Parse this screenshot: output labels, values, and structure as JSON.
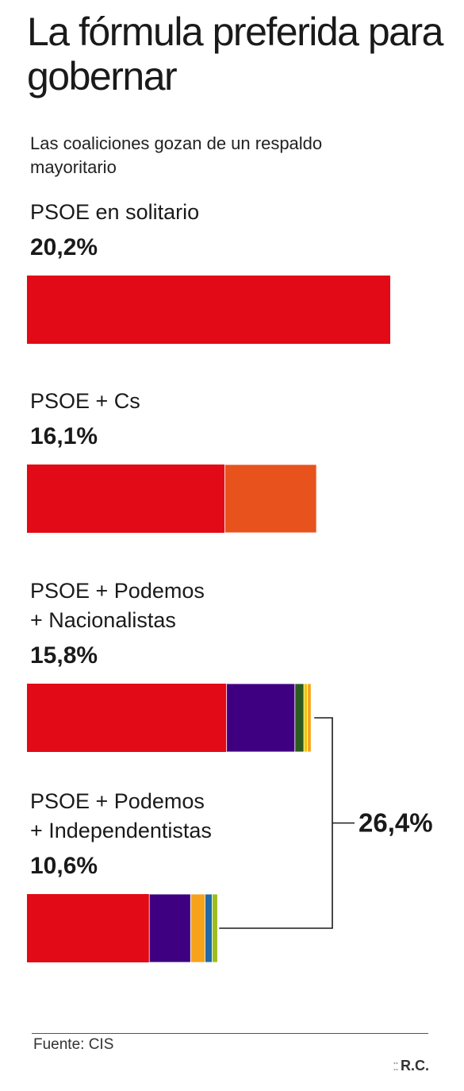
{
  "title": "La fórmula preferida para gobernar",
  "subtitle": "Las coaliciones gozan de un respaldo mayoritario",
  "source": "Fuente: CIS",
  "credit": "R.C.",
  "credit_dots": "::",
  "colors": {
    "psoe": "#e20a16",
    "cs": "#e8531d",
    "podemos": "#3e0080",
    "nacionalista_verde": "#2e5a1e",
    "nacionalista_amarillo": "#f3c400",
    "independentista_naranja": "#f6a21a",
    "independentista_azul": "#1f6aa8",
    "independentista_lima": "#9bbd1f"
  },
  "chart_data": {
    "type": "bar",
    "orientation": "horizontal-stacked",
    "max_value": 20.2,
    "bars": [
      {
        "label_lines": [
          "PSOE en solitario"
        ],
        "value": 20.2,
        "value_label": "20,2%",
        "segments": [
          {
            "value": 20.2,
            "color": "#e20a16"
          }
        ]
      },
      {
        "label_lines": [
          "PSOE + Cs"
        ],
        "value": 16.1,
        "value_label": "16,1%",
        "segments": [
          {
            "value": 11.0,
            "color": "#e20a16"
          },
          {
            "value": 5.1,
            "color": "#e8531d"
          }
        ]
      },
      {
        "label_lines": [
          "PSOE + Podemos",
          "+ Nacionalistas"
        ],
        "value": 15.8,
        "value_label": "15,8%",
        "segments": [
          {
            "value": 11.1,
            "color": "#e20a16"
          },
          {
            "value": 3.8,
            "color": "#3e0080"
          },
          {
            "value": 0.5,
            "color": "#2e5a1e"
          },
          {
            "value": 0.2,
            "color": "#f3c400"
          },
          {
            "value": 0.2,
            "color": "#f6a21a"
          }
        ]
      },
      {
        "label_lines": [
          "PSOE + Podemos",
          "+ Independentistas"
        ],
        "value": 10.6,
        "value_label": "10,6%",
        "segments": [
          {
            "value": 6.8,
            "color": "#e20a16"
          },
          {
            "value": 2.3,
            "color": "#3e0080"
          },
          {
            "value": 0.8,
            "color": "#f6a21a"
          },
          {
            "value": 0.4,
            "color": "#1f6aa8"
          },
          {
            "value": 0.3,
            "color": "#9bbd1f"
          }
        ]
      }
    ],
    "bracket": {
      "value": 26.4,
      "value_label": "26,4%",
      "joins": [
        2,
        3
      ]
    }
  }
}
